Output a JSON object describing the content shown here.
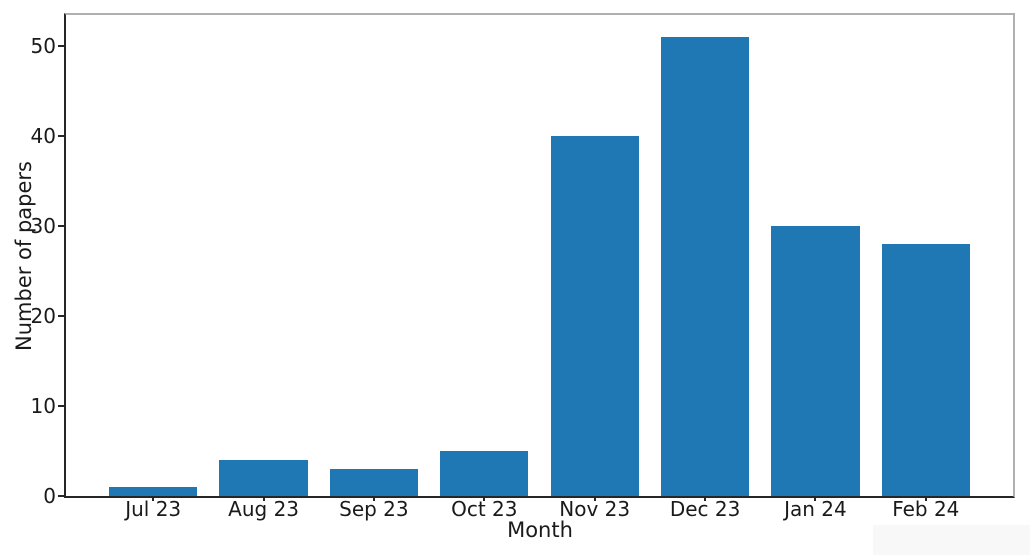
{
  "chart_data": {
    "type": "bar",
    "categories": [
      "Jul 23",
      "Aug 23",
      "Sep 23",
      "Oct 23",
      "Nov 23",
      "Dec 23",
      "Jan 24",
      "Feb 24"
    ],
    "values": [
      1,
      4,
      3,
      5,
      40,
      51,
      30,
      28
    ],
    "title": "",
    "xlabel": "Month",
    "ylabel": "Number of papers",
    "ylim": [
      0,
      53.4
    ],
    "yticks": [
      0,
      10,
      20,
      30,
      40,
      50
    ],
    "bar_color": "#1f77b4",
    "grid": false,
    "legend": "none"
  },
  "figure": {
    "background": "#ffffff",
    "text_color": "#1a1a1a",
    "spine_dark": "#262626",
    "spine_light": "#b0b0b0",
    "watermark_color": "#f8f8f8"
  }
}
